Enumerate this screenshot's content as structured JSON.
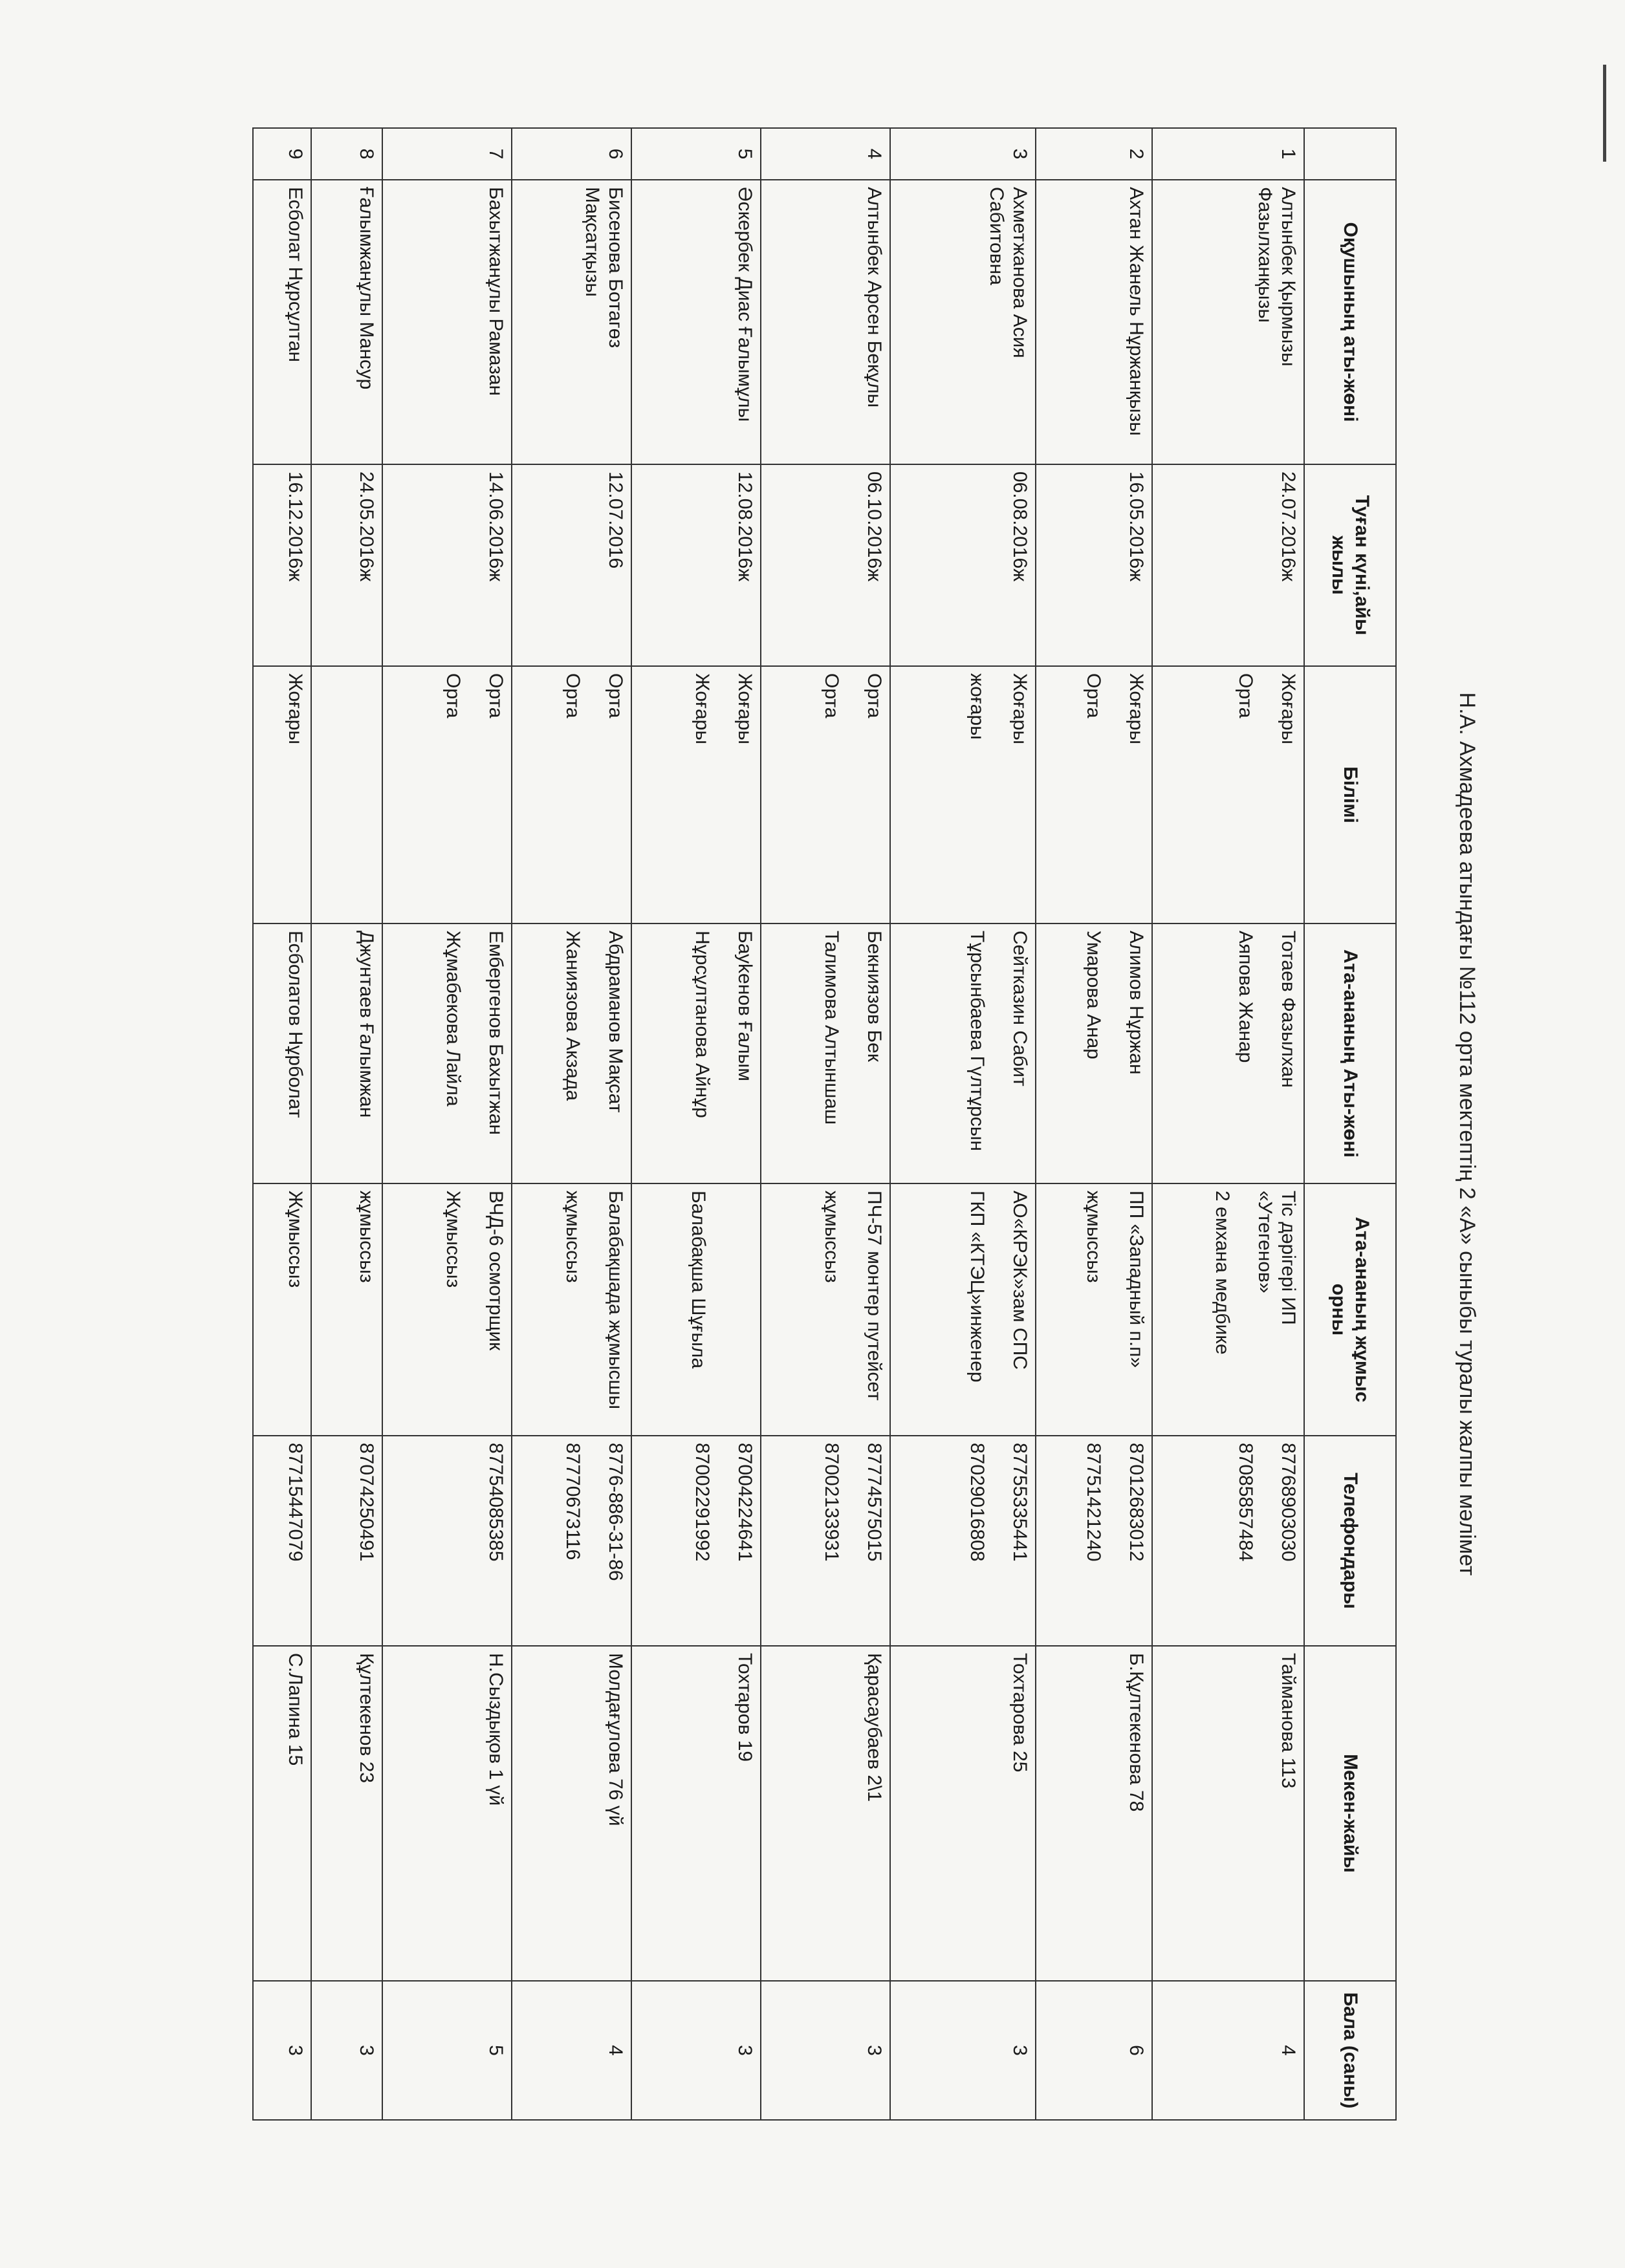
{
  "header": {
    "title": "Н.А. Ахмадеева атындағы №112 орта мектептің  2 «А» сыныбы туралы жалпы мәлімет"
  },
  "table": {
    "columns": [
      "Оқушының аты-жөні",
      "Туған күні,айы жылы",
      "Білімі",
      "Ата-ананың Аты-жөні",
      "Ата-ананың жұмыс орны",
      "Телефондары",
      "Мекен-жайы",
      "Бала (саны)"
    ],
    "rows": [
      {
        "number": "1",
        "name": "Алтынбек Қырмызы Фазылханқызы",
        "birth": "24.07.2016ж",
        "education": [
          "Жоғары",
          "Орта"
        ],
        "parent": [
          "Тотаев Фазылхан",
          "Аяпова Жанар"
        ],
        "job": [
          "Тіс дәрігері ИП «Утегенов»",
          "2 емхана медбике"
        ],
        "phone": [
          "87768903030",
          "87085857484"
        ],
        "address": "Тайманова 113",
        "children": "4"
      },
      {
        "number": "2",
        "name": "Ахтан Жанель Нұржанқызы",
        "birth": "16.05.2016ж",
        "education": [
          "Жоғары",
          "Орта"
        ],
        "parent": [
          "Алимов Нұржан",
          "Умарова Анар"
        ],
        "job": [
          "ПП «Западный п.п»",
          "жұмыссыз"
        ],
        "phone": [
          "87012683012",
          "87751421240"
        ],
        "address": "Б.Құлтекенова 78",
        "children": "6"
      },
      {
        "number": "3",
        "name": "Ахметжанова Асия Сабитовна",
        "birth": "06.08.2016ж",
        "education": [
          "Жоғары",
          "жоғары"
        ],
        "parent": [
          "Сейтказин Сабит",
          "Тұрсынбаева Гүлтұрсын"
        ],
        "job": [
          "АО«КРЭК»зам СПС",
          "ГКП «КТЭЦ»инженер"
        ],
        "phone": [
          "87755335441",
          "87029016808"
        ],
        "address": "Тохтарова 25",
        "children": "3"
      },
      {
        "number": "4",
        "name": "Алтынбек  Арсен Бекұлы",
        "birth": "06.10.2016ж",
        "education": [
          "Орта",
          "Орта"
        ],
        "parent": [
          "Бекниязов Бек",
          "Талимова Алтыншаш"
        ],
        "job": [
          "ПЧ-57 монтер путейсет",
          "жұмыссыз"
        ],
        "phone": [
          "87774575015",
          "87002133931"
        ],
        "address": "Қарасаубаев 2\\1",
        "children": "3"
      },
      {
        "number": "5",
        "name": "Әскербек Диас Ғалымұлы",
        "birth": "12.08.2016ж",
        "education": [
          "Жоғары",
          "Жоғары"
        ],
        "parent": [
          "Бауkенов Ғалым",
          "Нұрсұлтанова Айнұр"
        ],
        "job": [
          "Балабақша Шұғыла"
        ],
        "phone": [
          "87004224641",
          "87002291992"
        ],
        "address": "Тохтаров 19",
        "children": "3"
      },
      {
        "number": "6",
        "name": "Бисенова Ботагөз Мақсатқызы",
        "birth": "12.07.2016",
        "education": [
          "Орта",
          "Орта"
        ],
        "parent": [
          "Абдраманов Мақсат",
          "Жаниязова Акзада"
        ],
        "job": [
          "Балабақшада жұмысшы",
          "жұмыссыз"
        ],
        "phone": [
          "8776-886-31-86",
          "87770673116"
        ],
        "address": "Молдағұлова 76 үй",
        "children": "4"
      },
      {
        "number": "7",
        "name": "Бахытжанұлы Рамазан",
        "birth": "14.06.2016ж",
        "education": [
          "Орта",
          "Орта"
        ],
        "parent": [
          "Ембергенов Бахытжан",
          "Жұмабекова Лайла"
        ],
        "job": [
          "ВЧД-6 осмотрщик",
          "Жұмыссыз"
        ],
        "phone": [
          "87754085385"
        ],
        "address": "Н.Сыздықов 1 үй",
        "children": "5"
      },
      {
        "number": "8",
        "name": "Ғалымжанұлы Мансур",
        "birth": "24.05.2016ж",
        "education": [],
        "parent": [
          "Джунтаев Ғалымжан"
        ],
        "job": [
          "жұмыссыз"
        ],
        "phone": [
          "87074250491"
        ],
        "address": "Құлтекенов 23",
        "children": "3"
      },
      {
        "number": "9",
        "name": "Есболат Нұрсұлтан",
        "birth": "16.12.2016ж",
        "education": [
          "Жоғары"
        ],
        "parent": [
          "Есболатов Нұрболат"
        ],
        "job": [
          "Жұмыссыз"
        ],
        "phone": [
          "87715447079"
        ],
        "address": "С.Лапина 15",
        "children": "3"
      }
    ]
  }
}
